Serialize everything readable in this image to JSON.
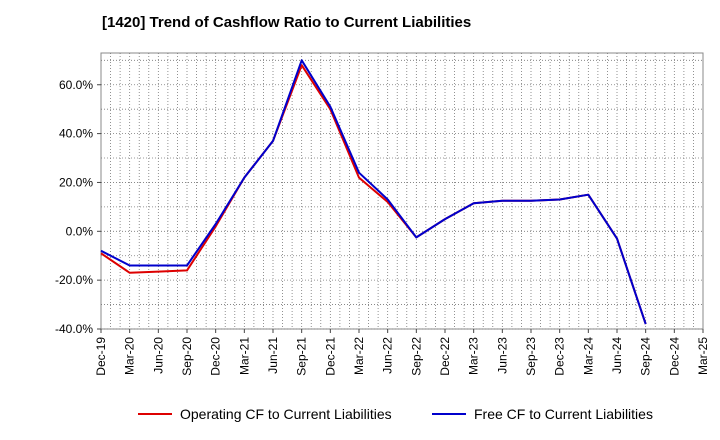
{
  "chart_data": {
    "type": "line",
    "title": "[1420]  Trend of Cashflow Ratio to Current Liabilities",
    "xlabel": "",
    "ylabel": "",
    "ylim": [
      -40,
      73
    ],
    "y_ticks": [
      60,
      40,
      20,
      0,
      -20,
      -40
    ],
    "y_tick_labels": [
      "60.0%",
      "40.0%",
      "20.0%",
      "0.0%",
      "-20.0%",
      "-40.0%"
    ],
    "categories": [
      "Dec-19",
      "Mar-20",
      "Jun-20",
      "Sep-20",
      "Dec-20",
      "Mar-21",
      "Jun-21",
      "Sep-21",
      "Dec-21",
      "Mar-22",
      "Jun-22",
      "Sep-22",
      "Dec-22",
      "Mar-23",
      "Jun-23",
      "Sep-23",
      "Dec-23",
      "Mar-24",
      "Jun-24",
      "Sep-24",
      "Dec-24",
      "Mar-25"
    ],
    "grid": true,
    "legend_position": "bottom",
    "series": [
      {
        "name": "Operating CF to Current Liabilities",
        "color": "#dd0000",
        "values": [
          -9,
          -17,
          -16.5,
          -16,
          2,
          22,
          37,
          68,
          50,
          22,
          12,
          -2.5,
          5,
          11.5,
          12.5,
          12.5,
          13,
          15,
          -3,
          -38,
          null,
          null
        ]
      },
      {
        "name": "Free CF to Current Liabilities",
        "color": "#0000cc",
        "values": [
          -8,
          -14,
          -14,
          -14,
          3,
          22,
          37,
          70,
          51,
          24,
          13,
          -2.5,
          5,
          11.5,
          12.5,
          12.5,
          13,
          15,
          -3,
          -38,
          null,
          null
        ]
      }
    ]
  }
}
